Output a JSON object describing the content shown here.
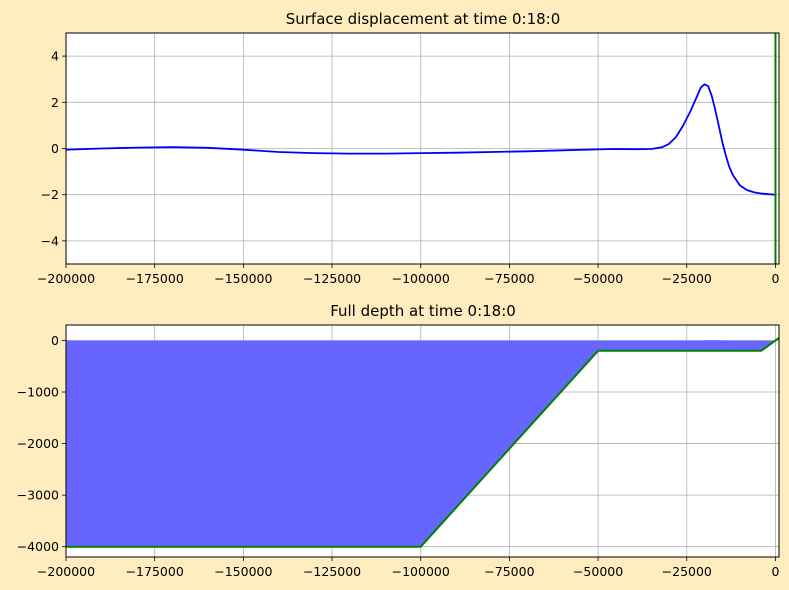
{
  "figure": {
    "background": "#ffedc0"
  },
  "chart_data": [
    {
      "type": "line",
      "title": "Surface displacement at time 0:18:0",
      "xlim": [
        -200000,
        1000
      ],
      "ylim": [
        -5,
        5
      ],
      "grid": true,
      "xticks": [
        -200000,
        -175000,
        -150000,
        -125000,
        -100000,
        -75000,
        -50000,
        -25000,
        0
      ],
      "xtick_labels": [
        "−200000",
        "−175000",
        "−150000",
        "−125000",
        "−100000",
        "−75000",
        "−50000",
        "−25000",
        "0"
      ],
      "yticks": [
        -4,
        -2,
        0,
        2,
        4
      ],
      "ytick_labels": [
        "−4",
        "−2",
        "0",
        "2",
        "4"
      ],
      "series": [
        {
          "color": "#0000ff",
          "x": [
            -200000,
            -190000,
            -180000,
            -170000,
            -160000,
            -150000,
            -140000,
            -130000,
            -120000,
            -110000,
            -100000,
            -90000,
            -80000,
            -70000,
            -60000,
            -50000,
            -45000,
            -40000,
            -35000,
            -32000,
            -30000,
            -28000,
            -26000,
            -24000,
            -22000,
            -21000,
            -20000,
            -19000,
            -18000,
            -17000,
            -16000,
            -15000,
            -14000,
            -13000,
            -12000,
            -10000,
            -8000,
            -6000,
            -4000,
            -2000,
            0
          ],
          "y": [
            -0.05,
            0.0,
            0.04,
            0.06,
            0.03,
            -0.05,
            -0.15,
            -0.2,
            -0.22,
            -0.22,
            -0.2,
            -0.18,
            -0.15,
            -0.12,
            -0.08,
            -0.04,
            -0.02,
            -0.03,
            -0.02,
            0.05,
            0.2,
            0.5,
            1.0,
            1.6,
            2.3,
            2.65,
            2.78,
            2.7,
            2.3,
            1.7,
            1.0,
            0.3,
            -0.3,
            -0.8,
            -1.15,
            -1.6,
            -1.8,
            -1.9,
            -1.95,
            -1.98,
            -2.0
          ]
        }
      ],
      "vline": {
        "x": 0,
        "color": "#008000"
      }
    },
    {
      "type": "area",
      "title": "Full depth at time 0:18:0",
      "xlim": [
        -200000,
        1000
      ],
      "ylim": [
        -4200,
        300
      ],
      "grid": true,
      "xticks": [
        -200000,
        -175000,
        -150000,
        -125000,
        -100000,
        -75000,
        -50000,
        -25000,
        0
      ],
      "xtick_labels": [
        "−200000",
        "−175000",
        "−150000",
        "−125000",
        "−100000",
        "−75000",
        "−50000",
        "−25000",
        "0"
      ],
      "yticks": [
        0,
        -1000,
        -2000,
        -3000,
        -4000
      ],
      "ytick_labels": [
        "0",
        "−1000",
        "−2000",
        "−3000",
        "−4000"
      ],
      "surface": {
        "color": "#6666ff",
        "x": [
          -200000,
          -20000,
          -19000,
          -18000,
          -14000,
          -10000,
          0
        ],
        "y": [
          0,
          0,
          3,
          3,
          -1,
          -2,
          -2
        ]
      },
      "bathymetry": {
        "color": "#008000",
        "x": [
          -200000,
          -100000,
          -50000,
          -4000,
          1000
        ],
        "y": [
          -4000,
          -4000,
          -200,
          -200,
          50
        ]
      }
    }
  ]
}
